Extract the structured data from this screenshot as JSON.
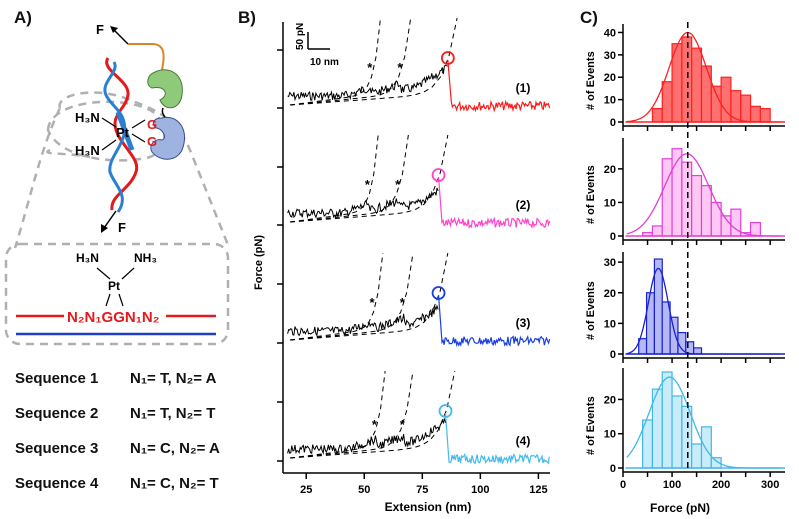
{
  "figure": {
    "panels": [
      {
        "label": "A)"
      },
      {
        "label": "B)"
      },
      {
        "label": "C)"
      }
    ]
  },
  "panel_a": {
    "force_label": "F",
    "ligand_left_top": "H₃N",
    "ligand_left_bottom": "H₃N",
    "metal": "Pt",
    "guanine_1": "G",
    "guanine_2": "G",
    "inset": {
      "ligand_left": "H₃N",
      "ligand_right": "NH₃",
      "metal": "Pt",
      "sequence_motif": "N₂N₁GGN₁N₂"
    },
    "colors": {
      "strand_top": "#e31a1c",
      "strand_bottom": "#1f3fbf",
      "protein_top": "#8fc97a",
      "protein_bottom": "#9fb3e0",
      "linker": "#d9832b",
      "dashed": "#b0b0b0"
    },
    "sequences": [
      {
        "name": "Sequence 1",
        "desc": "N₁= T, N₂= A"
      },
      {
        "name": "Sequence 2",
        "desc": "N₁= T, N₂= T"
      },
      {
        "name": "Sequence 3",
        "desc": "N₁= C, N₂= A"
      },
      {
        "name": "Sequence 4",
        "desc": "N₁= C, N₂= T"
      }
    ]
  },
  "chart_data": [
    {
      "type": "line",
      "panel": "B",
      "title": "",
      "xlabel": "Extension (nm)",
      "ylabel": "Force (pN)",
      "xlim": [
        15,
        130
      ],
      "xticks": [
        25,
        50,
        75,
        100,
        125
      ],
      "scale_bar": {
        "force": "50 pN",
        "extension": "10 nm"
      },
      "peak_marker": "*",
      "series": [
        {
          "name": "(1)",
          "color": "#ff1a1a",
          "peaks_nm": [
            53,
            66
          ],
          "rupture_nm": 86
        },
        {
          "name": "(2)",
          "color": "#ff44cc",
          "peaks_nm": [
            52,
            65
          ],
          "rupture_nm": 82
        },
        {
          "name": "(3)",
          "color": "#1a3fe0",
          "peaks_nm": [
            54,
            67
          ],
          "rupture_nm": 82
        },
        {
          "name": "(4)",
          "color": "#44bbee",
          "peaks_nm": [
            55,
            67
          ],
          "rupture_nm": 85
        }
      ]
    },
    {
      "type": "bar",
      "panel": "C",
      "xlabel": "Force (pN)",
      "ylabel": "# of Events",
      "xlim": [
        -5,
        315
      ],
      "xticks": [
        0,
        100,
        200,
        300
      ],
      "reference_line_pN": 132,
      "series": [
        {
          "name": "Sequence 1",
          "color": "#ff2020",
          "fill": "#ff7070",
          "ylim": [
            0,
            42
          ],
          "yticks": [
            0,
            10,
            20,
            30,
            40
          ],
          "bin_start": 60,
          "bin_width": 20,
          "values": [
            6,
            18,
            35,
            38,
            33,
            25,
            16,
            20,
            14,
            12,
            7,
            6
          ],
          "fit_mean": 132,
          "fit_sd": 38,
          "fit_amp": 40
        },
        {
          "name": "Sequence 2",
          "color": "#e040d8",
          "fill": "#ffc8f4",
          "ylim": [
            0,
            28
          ],
          "yticks": [
            0,
            10,
            20
          ],
          "bin_start": 40,
          "bin_width": 20,
          "values": [
            1,
            3,
            23,
            26,
            22,
            18,
            15,
            10,
            6,
            8,
            1,
            4
          ],
          "fit_mean": 130,
          "fit_sd": 45,
          "fit_amp": 24.5
        },
        {
          "name": "Sequence 3",
          "color": "#1a22d0",
          "fill": "#b4b8f4",
          "ylim": [
            0,
            32
          ],
          "yticks": [
            0,
            10,
            20,
            30
          ],
          "bin_start": 32,
          "bin_width": 16,
          "values": [
            5,
            20,
            31,
            17,
            12,
            7,
            4,
            2
          ],
          "fit_mean": 72,
          "fit_sd": 20,
          "fit_amp": 28
        },
        {
          "name": "Sequence 4",
          "color": "#40b8e8",
          "fill": "#c8ecfa",
          "ylim": [
            0,
            28
          ],
          "yticks": [
            0,
            10,
            20
          ],
          "bin_start": 40,
          "bin_width": 20,
          "values": [
            14,
            23,
            28,
            21,
            18,
            7,
            12,
            3
          ],
          "fit_mean": 95,
          "fit_sd": 42,
          "fit_amp": 26.5
        }
      ]
    }
  ]
}
